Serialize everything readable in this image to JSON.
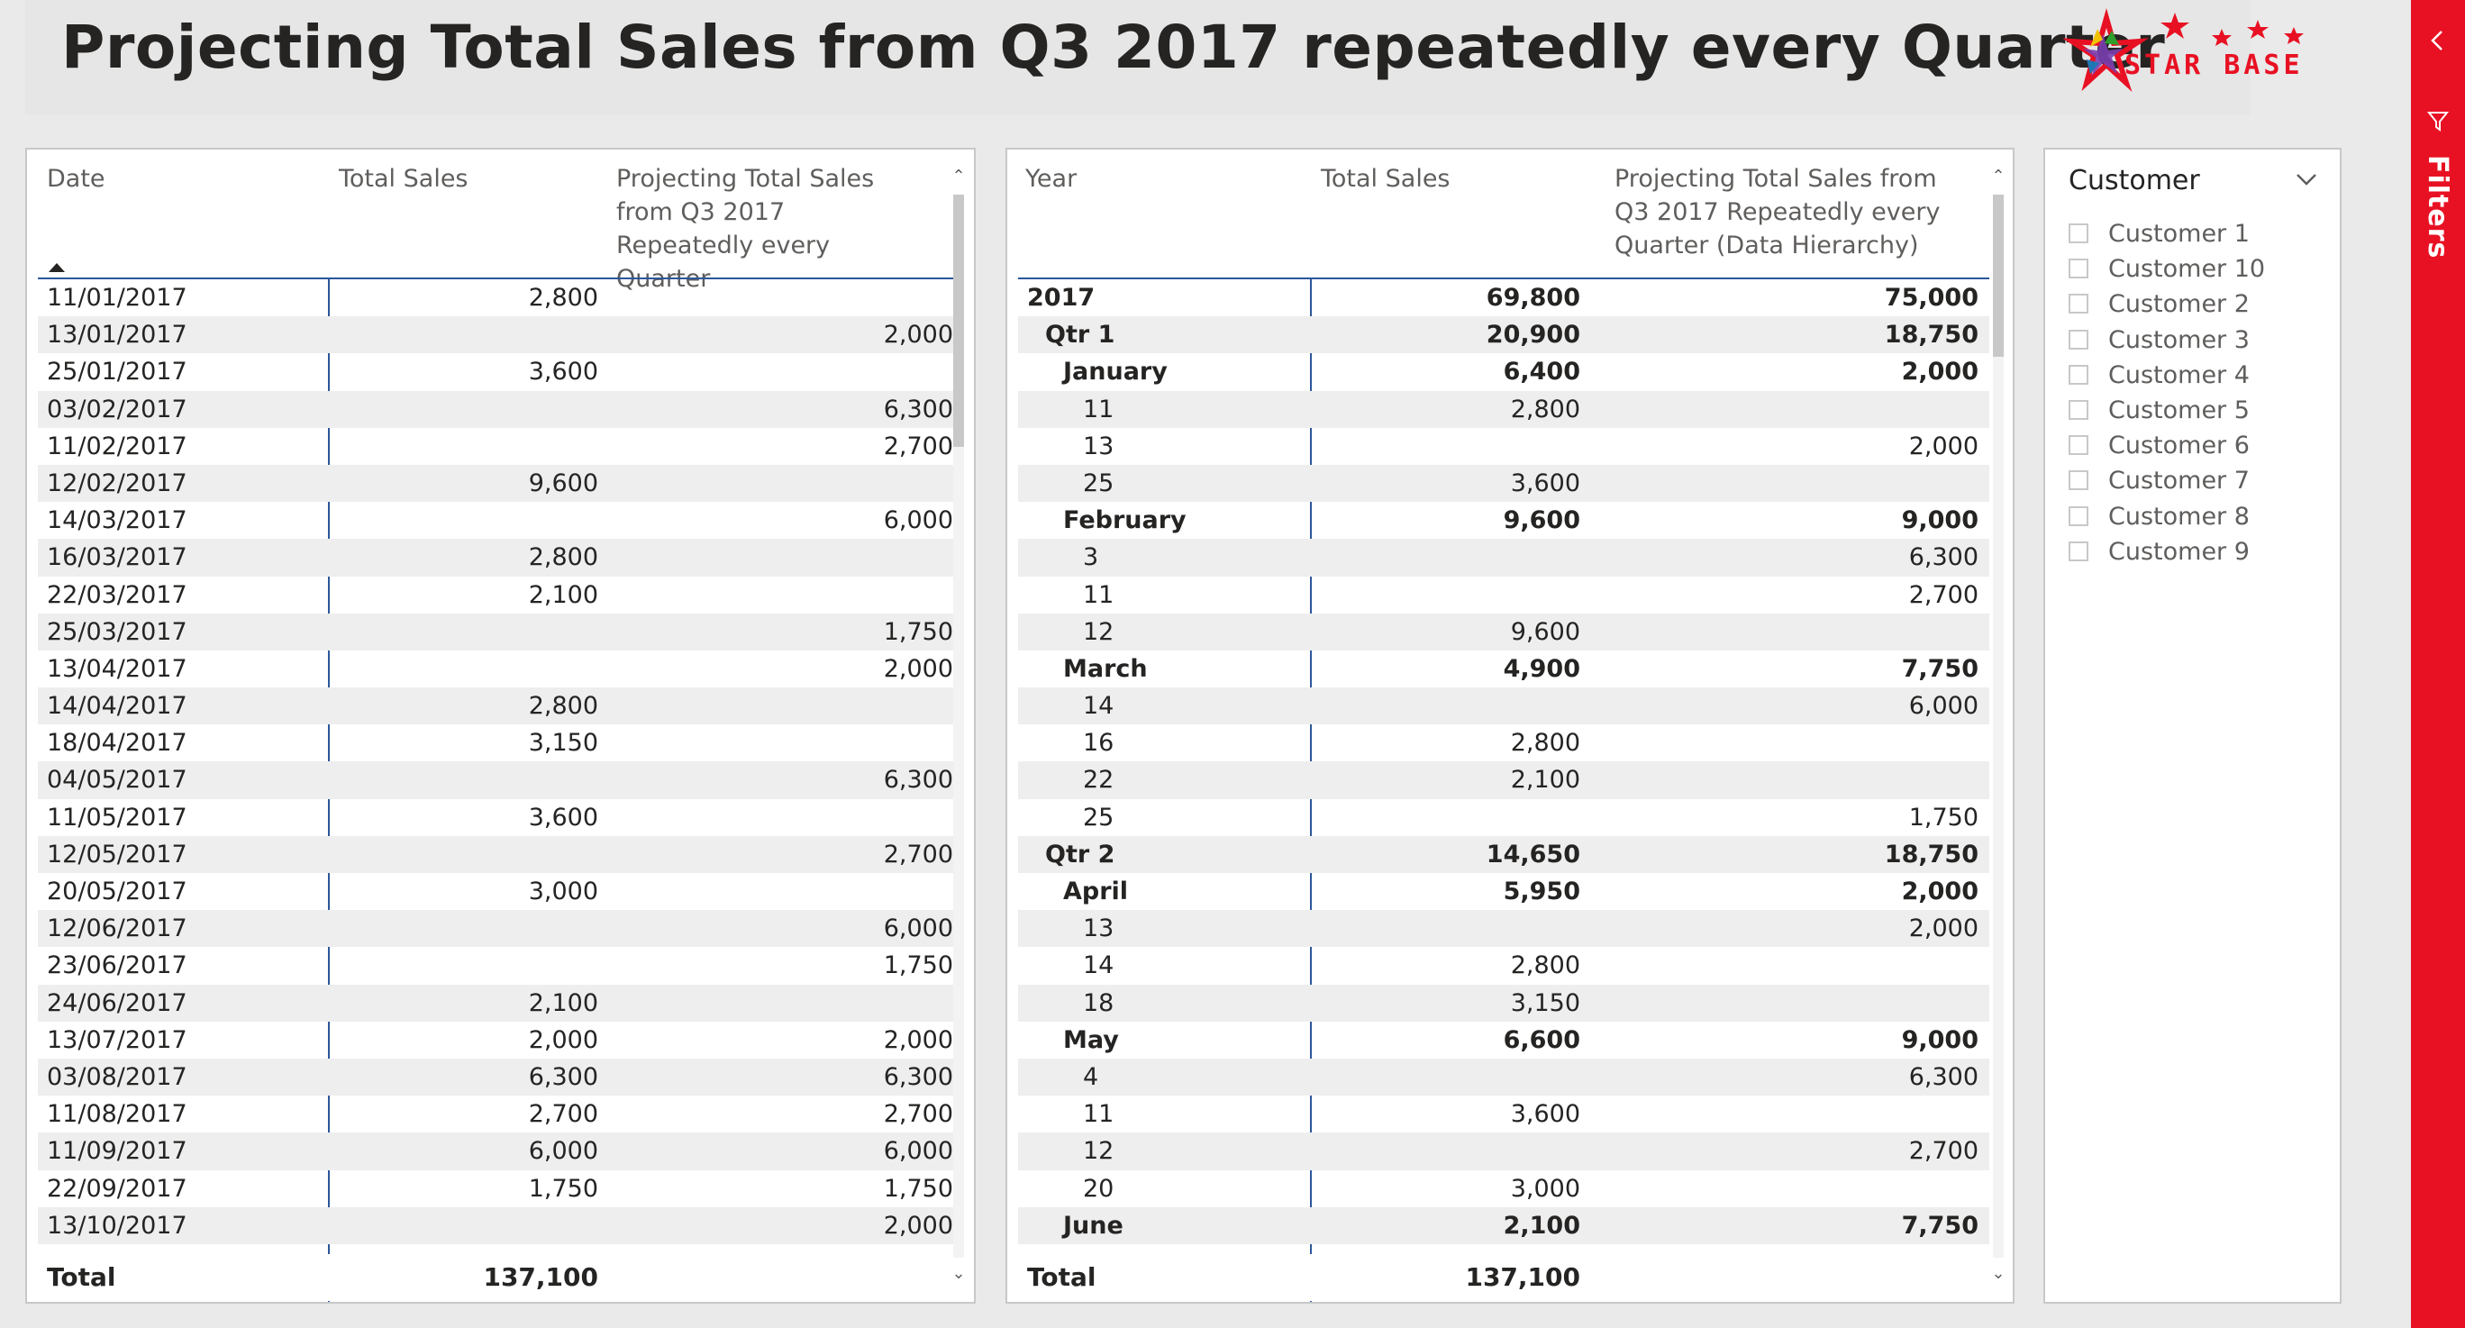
{
  "page": {
    "title": "Projecting Total Sales from Q3 2017 repeatedly every Quarter",
    "logo_text": "STAR BASE"
  },
  "left_table": {
    "headers": {
      "date": "Date",
      "sales": "Total Sales",
      "projection": "Projecting Total Sales from Q3 2017 Repeatedly every Quarter"
    },
    "rows": [
      {
        "date": "11/01/2017",
        "sales": "2,800",
        "projection": ""
      },
      {
        "date": "13/01/2017",
        "sales": "",
        "projection": "2,000"
      },
      {
        "date": "25/01/2017",
        "sales": "3,600",
        "projection": ""
      },
      {
        "date": "03/02/2017",
        "sales": "",
        "projection": "6,300"
      },
      {
        "date": "11/02/2017",
        "sales": "",
        "projection": "2,700"
      },
      {
        "date": "12/02/2017",
        "sales": "9,600",
        "projection": ""
      },
      {
        "date": "14/03/2017",
        "sales": "",
        "projection": "6,000"
      },
      {
        "date": "16/03/2017",
        "sales": "2,800",
        "projection": ""
      },
      {
        "date": "22/03/2017",
        "sales": "2,100",
        "projection": ""
      },
      {
        "date": "25/03/2017",
        "sales": "",
        "projection": "1,750"
      },
      {
        "date": "13/04/2017",
        "sales": "",
        "projection": "2,000"
      },
      {
        "date": "14/04/2017",
        "sales": "2,800",
        "projection": ""
      },
      {
        "date": "18/04/2017",
        "sales": "3,150",
        "projection": ""
      },
      {
        "date": "04/05/2017",
        "sales": "",
        "projection": "6,300"
      },
      {
        "date": "11/05/2017",
        "sales": "3,600",
        "projection": ""
      },
      {
        "date": "12/05/2017",
        "sales": "",
        "projection": "2,700"
      },
      {
        "date": "20/05/2017",
        "sales": "3,000",
        "projection": ""
      },
      {
        "date": "12/06/2017",
        "sales": "",
        "projection": "6,000"
      },
      {
        "date": "23/06/2017",
        "sales": "",
        "projection": "1,750"
      },
      {
        "date": "24/06/2017",
        "sales": "2,100",
        "projection": ""
      },
      {
        "date": "13/07/2017",
        "sales": "2,000",
        "projection": "2,000"
      },
      {
        "date": "03/08/2017",
        "sales": "6,300",
        "projection": "6,300"
      },
      {
        "date": "11/08/2017",
        "sales": "2,700",
        "projection": "2,700"
      },
      {
        "date": "11/09/2017",
        "sales": "6,000",
        "projection": "6,000"
      },
      {
        "date": "22/09/2017",
        "sales": "1,750",
        "projection": "1,750"
      },
      {
        "date": "13/10/2017",
        "sales": "",
        "projection": "2,000"
      }
    ],
    "total": {
      "label": "Total",
      "sales": "137,100",
      "projection": ""
    }
  },
  "right_table": {
    "headers": {
      "year": "Year",
      "sales": "Total Sales",
      "projection": "Projecting Total Sales from Q3 2017 Repeatedly every Quarter (Data Hierarchy)"
    },
    "rows": [
      {
        "label": "2017",
        "level": 0,
        "bold": true,
        "sales": "69,800",
        "projection": "75,000"
      },
      {
        "label": "Qtr 1",
        "level": 1,
        "bold": true,
        "sales": "20,900",
        "projection": "18,750"
      },
      {
        "label": "January",
        "level": 2,
        "bold": true,
        "sales": "6,400",
        "projection": "2,000"
      },
      {
        "label": "11",
        "level": 3,
        "bold": false,
        "sales": "2,800",
        "projection": ""
      },
      {
        "label": "13",
        "level": 3,
        "bold": false,
        "sales": "",
        "projection": "2,000"
      },
      {
        "label": "25",
        "level": 3,
        "bold": false,
        "sales": "3,600",
        "projection": ""
      },
      {
        "label": "February",
        "level": 2,
        "bold": true,
        "sales": "9,600",
        "projection": "9,000"
      },
      {
        "label": "3",
        "level": 3,
        "bold": false,
        "sales": "",
        "projection": "6,300"
      },
      {
        "label": "11",
        "level": 3,
        "bold": false,
        "sales": "",
        "projection": "2,700"
      },
      {
        "label": "12",
        "level": 3,
        "bold": false,
        "sales": "9,600",
        "projection": ""
      },
      {
        "label": "March",
        "level": 2,
        "bold": true,
        "sales": "4,900",
        "projection": "7,750"
      },
      {
        "label": "14",
        "level": 3,
        "bold": false,
        "sales": "",
        "projection": "6,000"
      },
      {
        "label": "16",
        "level": 3,
        "bold": false,
        "sales": "2,800",
        "projection": ""
      },
      {
        "label": "22",
        "level": 3,
        "bold": false,
        "sales": "2,100",
        "projection": ""
      },
      {
        "label": "25",
        "level": 3,
        "bold": false,
        "sales": "",
        "projection": "1,750"
      },
      {
        "label": "Qtr 2",
        "level": 1,
        "bold": true,
        "sales": "14,650",
        "projection": "18,750"
      },
      {
        "label": "April",
        "level": 2,
        "bold": true,
        "sales": "5,950",
        "projection": "2,000"
      },
      {
        "label": "13",
        "level": 3,
        "bold": false,
        "sales": "",
        "projection": "2,000"
      },
      {
        "label": "14",
        "level": 3,
        "bold": false,
        "sales": "2,800",
        "projection": ""
      },
      {
        "label": "18",
        "level": 3,
        "bold": false,
        "sales": "3,150",
        "projection": ""
      },
      {
        "label": "May",
        "level": 2,
        "bold": true,
        "sales": "6,600",
        "projection": "9,000"
      },
      {
        "label": "4",
        "level": 3,
        "bold": false,
        "sales": "",
        "projection": "6,300"
      },
      {
        "label": "11",
        "level": 3,
        "bold": false,
        "sales": "3,600",
        "projection": ""
      },
      {
        "label": "12",
        "level": 3,
        "bold": false,
        "sales": "",
        "projection": "2,700"
      },
      {
        "label": "20",
        "level": 3,
        "bold": false,
        "sales": "3,000",
        "projection": ""
      },
      {
        "label": "June",
        "level": 2,
        "bold": true,
        "sales": "2,100",
        "projection": "7,750"
      }
    ],
    "total": {
      "label": "Total",
      "sales": "137,100",
      "projection": ""
    }
  },
  "slicer": {
    "title": "Customer",
    "items": [
      "Customer 1",
      "Customer 10",
      "Customer 2",
      "Customer 3",
      "Customer 4",
      "Customer 5",
      "Customer 6",
      "Customer 7",
      "Customer 8",
      "Customer 9"
    ]
  },
  "filters_pane": {
    "label": "Filters"
  },
  "icons": {
    "sort": "sort-ascending-icon",
    "scroll_up": "chevron-up-icon",
    "scroll_down": "chevron-down-icon",
    "slicer_dropdown": "chevron-down-icon",
    "filters_collapse": "chevron-left-icon",
    "filters_funnel": "funnel-icon"
  },
  "colors": {
    "accent_blue": "#2b579a",
    "filters_red": "#e81123",
    "row_stripe": "#eeeeee"
  }
}
